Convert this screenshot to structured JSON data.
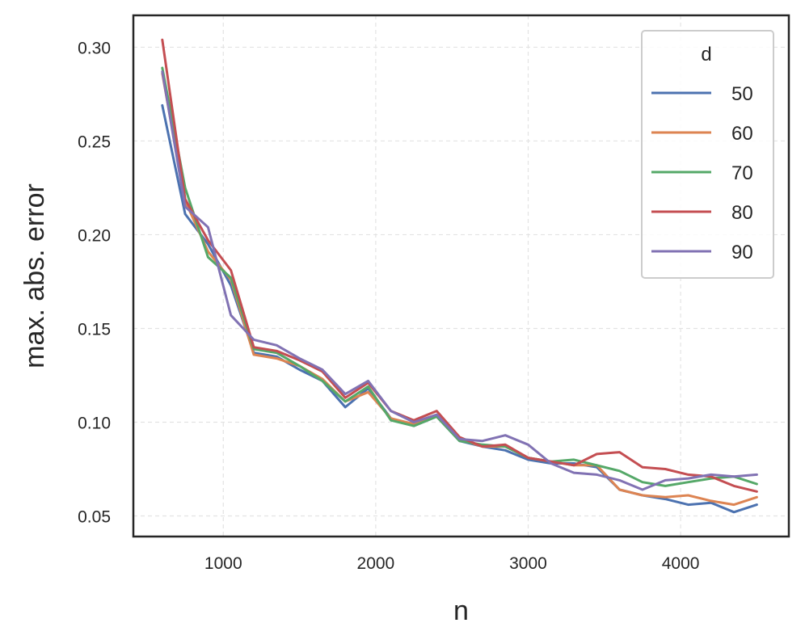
{
  "chart_data": {
    "type": "line",
    "xlabel": "n",
    "ylabel": "max. abs. error",
    "xlim": [
      410,
      4710
    ],
    "ylim": [
      0.039,
      0.317
    ],
    "xticks": [
      1000,
      2000,
      3000,
      4000
    ],
    "yticks": [
      0.05,
      0.1,
      0.15,
      0.2,
      0.25,
      0.3
    ],
    "xtick_labels": [
      "1000",
      "2000",
      "3000",
      "4000"
    ],
    "ytick_labels": [
      "0.05",
      "0.10",
      "0.15",
      "0.20",
      "0.25",
      "0.30"
    ],
    "grid": true,
    "legend": {
      "title": "d",
      "position": "top-right"
    },
    "x": [
      600,
      750,
      900,
      1050,
      1200,
      1350,
      1500,
      1650,
      1800,
      1950,
      2100,
      2250,
      2400,
      2550,
      2700,
      2850,
      3000,
      3150,
      3300,
      3450,
      3600,
      3750,
      3900,
      4050,
      4200,
      4350,
      4500
    ],
    "series": [
      {
        "name": "50",
        "color": "#4c72b0",
        "values": [
          0.269,
          0.211,
          0.195,
          0.173,
          0.137,
          0.135,
          0.128,
          0.122,
          0.108,
          0.118,
          0.102,
          0.098,
          0.103,
          0.09,
          0.087,
          0.085,
          0.08,
          0.078,
          0.078,
          0.076,
          0.064,
          0.061,
          0.059,
          0.056,
          0.057,
          0.052,
          0.056
        ]
      },
      {
        "name": "60",
        "color": "#dd8452",
        "values": [
          0.286,
          0.218,
          0.191,
          0.176,
          0.136,
          0.134,
          0.13,
          0.123,
          0.111,
          0.116,
          0.102,
          0.099,
          0.103,
          0.091,
          0.087,
          0.087,
          0.081,
          0.079,
          0.077,
          0.077,
          0.064,
          0.061,
          0.06,
          0.061,
          0.058,
          0.056,
          0.06
        ]
      },
      {
        "name": "70",
        "color": "#55a868",
        "values": [
          0.289,
          0.225,
          0.188,
          0.177,
          0.139,
          0.137,
          0.13,
          0.122,
          0.111,
          0.119,
          0.101,
          0.098,
          0.103,
          0.09,
          0.088,
          0.087,
          0.081,
          0.079,
          0.08,
          0.077,
          0.074,
          0.068,
          0.066,
          0.068,
          0.07,
          0.071,
          0.067
        ]
      },
      {
        "name": "80",
        "color": "#c44e52",
        "values": [
          0.304,
          0.219,
          0.197,
          0.181,
          0.14,
          0.138,
          0.133,
          0.127,
          0.113,
          0.121,
          0.106,
          0.101,
          0.106,
          0.092,
          0.087,
          0.088,
          0.081,
          0.079,
          0.077,
          0.083,
          0.084,
          0.076,
          0.075,
          0.072,
          0.071,
          0.066,
          0.063
        ]
      },
      {
        "name": "90",
        "color": "#8172b3",
        "values": [
          0.287,
          0.215,
          0.204,
          0.157,
          0.144,
          0.141,
          0.134,
          0.128,
          0.115,
          0.122,
          0.106,
          0.1,
          0.104,
          0.091,
          0.09,
          0.093,
          0.088,
          0.078,
          0.073,
          0.072,
          0.069,
          0.064,
          0.069,
          0.07,
          0.072,
          0.071,
          0.072
        ]
      }
    ]
  }
}
